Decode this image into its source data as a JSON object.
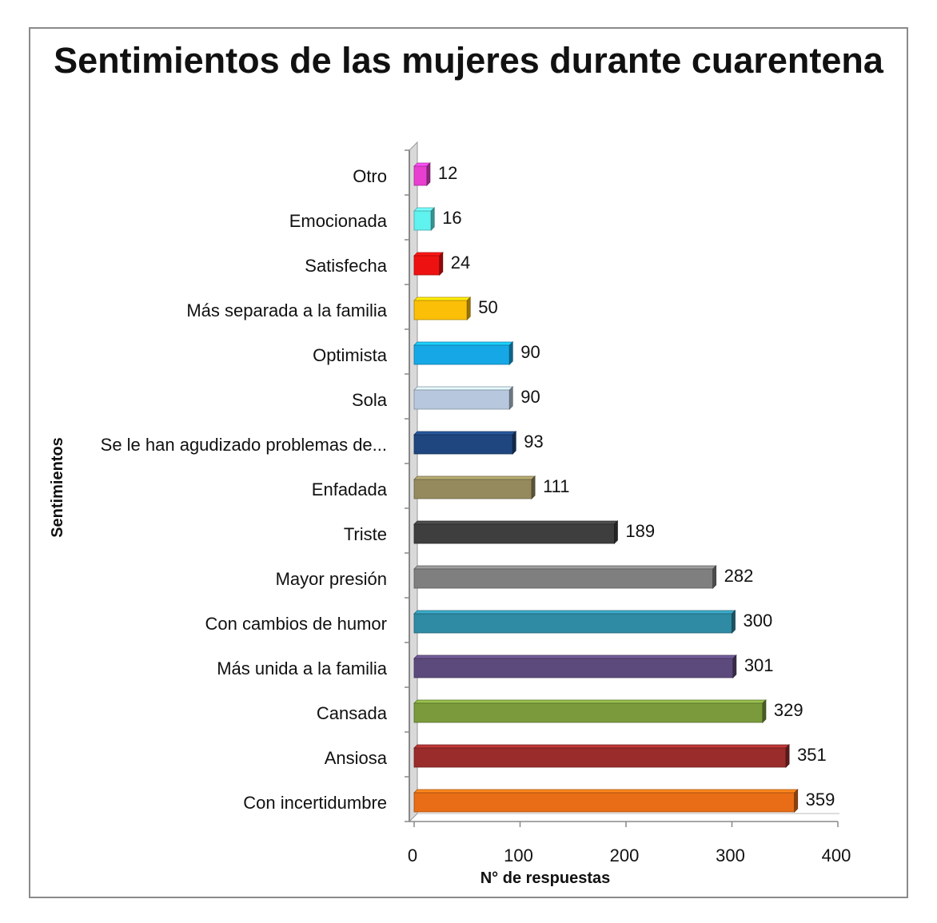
{
  "chart_data": {
    "type": "bar",
    "orientation": "horizontal",
    "title": "Sentimientos de las mujeres durante cuarentena",
    "xlabel": "N° de respuestas",
    "ylabel": "Sentimientos",
    "xlim": [
      0,
      400
    ],
    "xticks": [
      0,
      100,
      200,
      300,
      400
    ],
    "xtick_labels": [
      "0",
      "100",
      "200",
      "300",
      "400"
    ],
    "grid": false,
    "legend": "none",
    "categories": [
      "Otro",
      "Emocionada",
      "Satisfecha",
      "Más separada a la familia",
      "Optimista",
      "Sola",
      "Se le han agudizado problemas de...",
      "Enfadada",
      "Triste",
      "Mayor presión",
      "Con cambios de humor",
      "Más unida a la familia",
      "Cansada",
      "Ansiosa",
      "Con incertidumbre"
    ],
    "values": [
      12,
      16,
      24,
      50,
      90,
      90,
      93,
      111,
      189,
      282,
      300,
      301,
      329,
      351,
      359
    ],
    "value_labels": [
      "12",
      "16",
      "24",
      "50",
      "90",
      "90",
      "93",
      "111",
      "189",
      "282",
      "300",
      "301",
      "329",
      "351",
      "359"
    ],
    "colors": [
      "#e83fd0",
      "#5ff2ee",
      "#ee1111",
      "#fbbf08",
      "#16a8e6",
      "#b7c8de",
      "#1f467e",
      "#958a5d",
      "#3e3e3e",
      "#7f7f7f",
      "#2f8aa3",
      "#5d4a7c",
      "#7a9a3c",
      "#9a2c2c",
      "#e86d16"
    ]
  }
}
